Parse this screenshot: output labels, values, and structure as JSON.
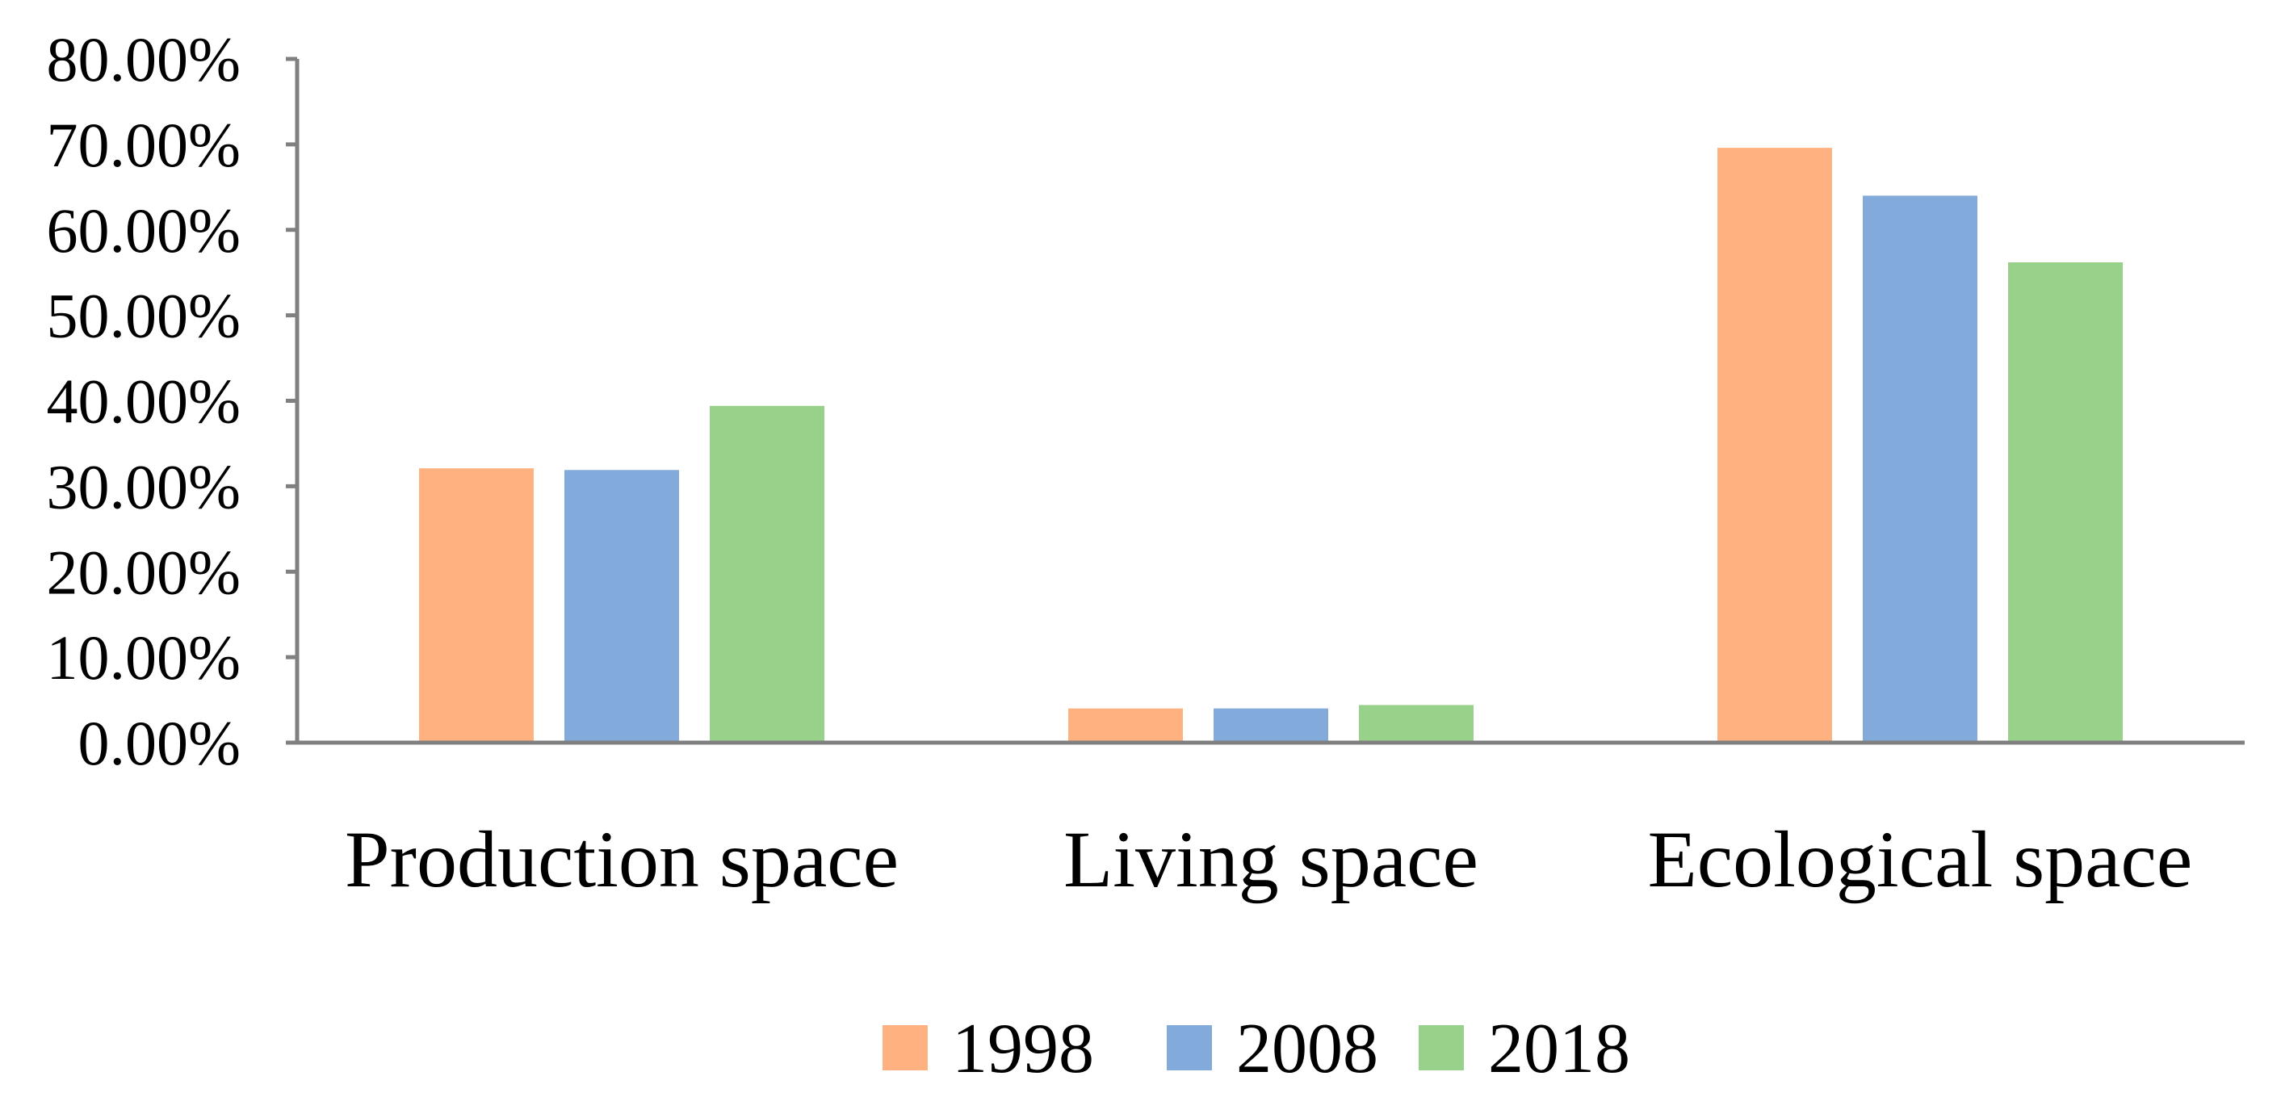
{
  "chart_data": {
    "type": "bar",
    "title": "",
    "xlabel": "",
    "ylabel": "",
    "categories": [
      "Production space",
      "Living space",
      "Ecological space"
    ],
    "series": [
      {
        "name": "1998",
        "color": "#FFB27F",
        "values": [
          0.321,
          0.04,
          0.696
        ]
      },
      {
        "name": "2008",
        "color": "#82AADB",
        "values": [
          0.319,
          0.04,
          0.64
        ]
      },
      {
        "name": "2018",
        "color": "#98D28A",
        "values": [
          0.394,
          0.044,
          0.562
        ]
      }
    ],
    "ylim": [
      0,
      0.8
    ],
    "yticks": [
      0,
      0.1,
      0.2,
      0.3,
      0.4,
      0.5,
      0.6,
      0.7,
      0.8
    ],
    "ytick_labels": [
      "0.00%",
      "10.00%",
      "20.00%",
      "30.00%",
      "40.00%",
      "50.00%",
      "60.00%",
      "70.00%",
      "80.00%"
    ],
    "grid": false,
    "legend_position": "bottom-center",
    "axis_color": "#808080"
  }
}
